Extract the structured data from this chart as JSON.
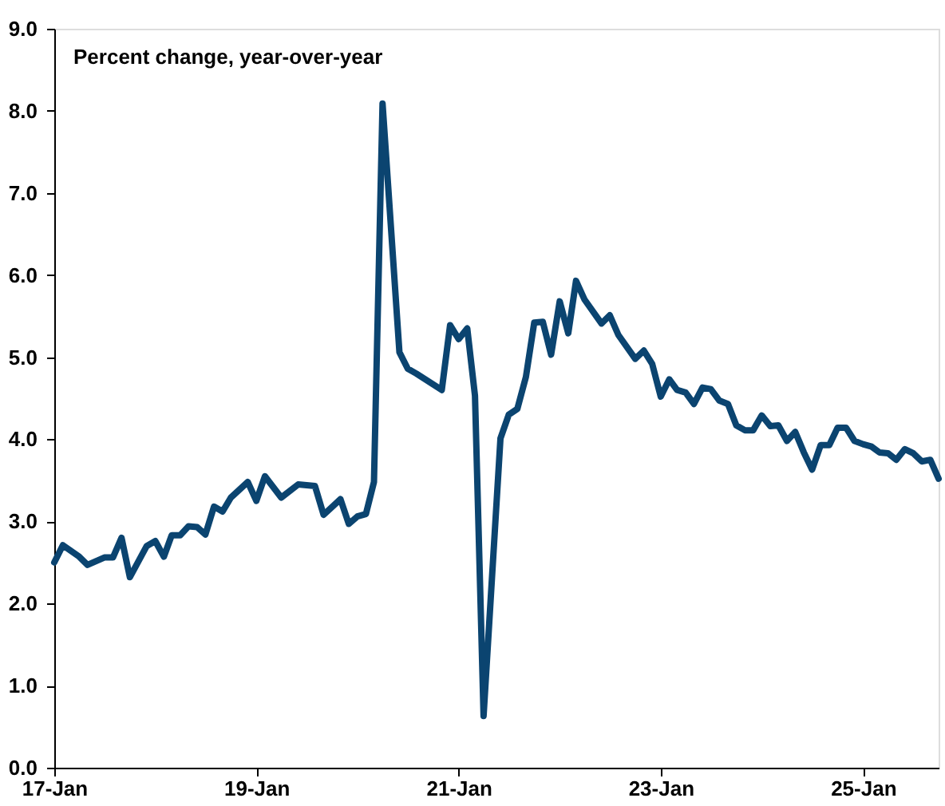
{
  "chart_data": {
    "type": "line",
    "title": "Percent change, year-over-year",
    "x": [
      "2017-01",
      "2017-02",
      "2017-04",
      "2017-05",
      "2017-07",
      "2017-08",
      "2017-09",
      "2017-10",
      "2017-12",
      "2018-01",
      "2018-02",
      "2018-03",
      "2018-04",
      "2018-05",
      "2018-06",
      "2018-07",
      "2018-08",
      "2018-09",
      "2018-10",
      "2018-12",
      "2019-01",
      "2019-02",
      "2019-04",
      "2019-06",
      "2019-08",
      "2019-09",
      "2019-11",
      "2019-12",
      "2020-01",
      "2020-02",
      "2020-03",
      "2020-04",
      "2020-06",
      "2020-07",
      "2020-08",
      "2020-11",
      "2020-12",
      "2021-01",
      "2021-02",
      "2021-03",
      "2021-04",
      "2021-06",
      "2021-07",
      "2021-08",
      "2021-09",
      "2021-10",
      "2021-11",
      "2021-12",
      "2022-01",
      "2022-02",
      "2022-03",
      "2022-04",
      "2022-06",
      "2022-07",
      "2022-08",
      "2022-10",
      "2022-11",
      "2022-12",
      "2023-01",
      "2023-02",
      "2023-03",
      "2023-04",
      "2023-05",
      "2023-06",
      "2023-07",
      "2023-08",
      "2023-09",
      "2023-10",
      "2023-11",
      "2023-12",
      "2024-01",
      "2024-02",
      "2024-03",
      "2024-04",
      "2024-05",
      "2024-06",
      "2024-07",
      "2024-08",
      "2024-09",
      "2024-10",
      "2024-11",
      "2024-12",
      "2025-01",
      "2025-02",
      "2025-03",
      "2025-04",
      "2025-05",
      "2025-06",
      "2025-07",
      "2025-08",
      "2025-09",
      "2025-10"
    ],
    "series": [
      {
        "color": "#0b4470",
        "values": [
          2.5,
          2.71,
          2.57,
          2.47,
          2.56,
          2.56,
          2.8,
          2.32,
          2.7,
          2.76,
          2.57,
          2.83,
          2.83,
          2.94,
          2.93,
          2.84,
          3.18,
          3.12,
          3.29,
          3.48,
          3.25,
          3.55,
          3.29,
          3.45,
          3.43,
          3.08,
          3.27,
          2.97,
          3.06,
          3.09,
          3.48,
          8.09,
          5.06,
          4.86,
          4.8,
          4.6,
          5.39,
          5.22,
          5.35,
          4.53,
          0.63,
          4.01,
          4.3,
          4.37,
          4.76,
          5.42,
          5.43,
          5.03,
          5.68,
          5.29,
          5.93,
          5.7,
          5.41,
          5.51,
          5.27,
          4.98,
          5.08,
          4.92,
          4.52,
          4.73,
          4.6,
          4.57,
          4.43,
          4.63,
          4.61,
          4.47,
          4.43,
          4.17,
          4.11,
          4.11,
          4.29,
          4.16,
          4.17,
          3.98,
          4.09,
          3.84,
          3.63,
          3.93,
          3.93,
          4.14,
          4.14,
          3.98,
          3.94,
          3.91,
          3.84,
          3.83,
          3.75,
          3.88,
          3.83,
          3.73,
          3.75,
          3.52
        ]
      }
    ],
    "xlim": [
      "2017-01",
      "2025-10"
    ],
    "xticks": [
      {
        "value": "2017-01",
        "label": "17-Jan"
      },
      {
        "value": "2019-01",
        "label": "19-Jan"
      },
      {
        "value": "2021-01",
        "label": "21-Jan"
      },
      {
        "value": "2023-01",
        "label": "23-Jan"
      },
      {
        "value": "2025-01",
        "label": "25-Jan"
      }
    ],
    "ylim": [
      0,
      9
    ],
    "yticks": [
      {
        "value": 0,
        "label": "0.0"
      },
      {
        "value": 1,
        "label": "1.0"
      },
      {
        "value": 2,
        "label": "2.0"
      },
      {
        "value": 3,
        "label": "3.0"
      },
      {
        "value": 4,
        "label": "4.0"
      },
      {
        "value": 5,
        "label": "5.0"
      },
      {
        "value": 6,
        "label": "6.0"
      },
      {
        "value": 7,
        "label": "7.0"
      },
      {
        "value": 8,
        "label": "8.0"
      },
      {
        "value": 9,
        "label": "9.0"
      }
    ],
    "grid": false,
    "marker": "none",
    "line_style": "solid"
  }
}
